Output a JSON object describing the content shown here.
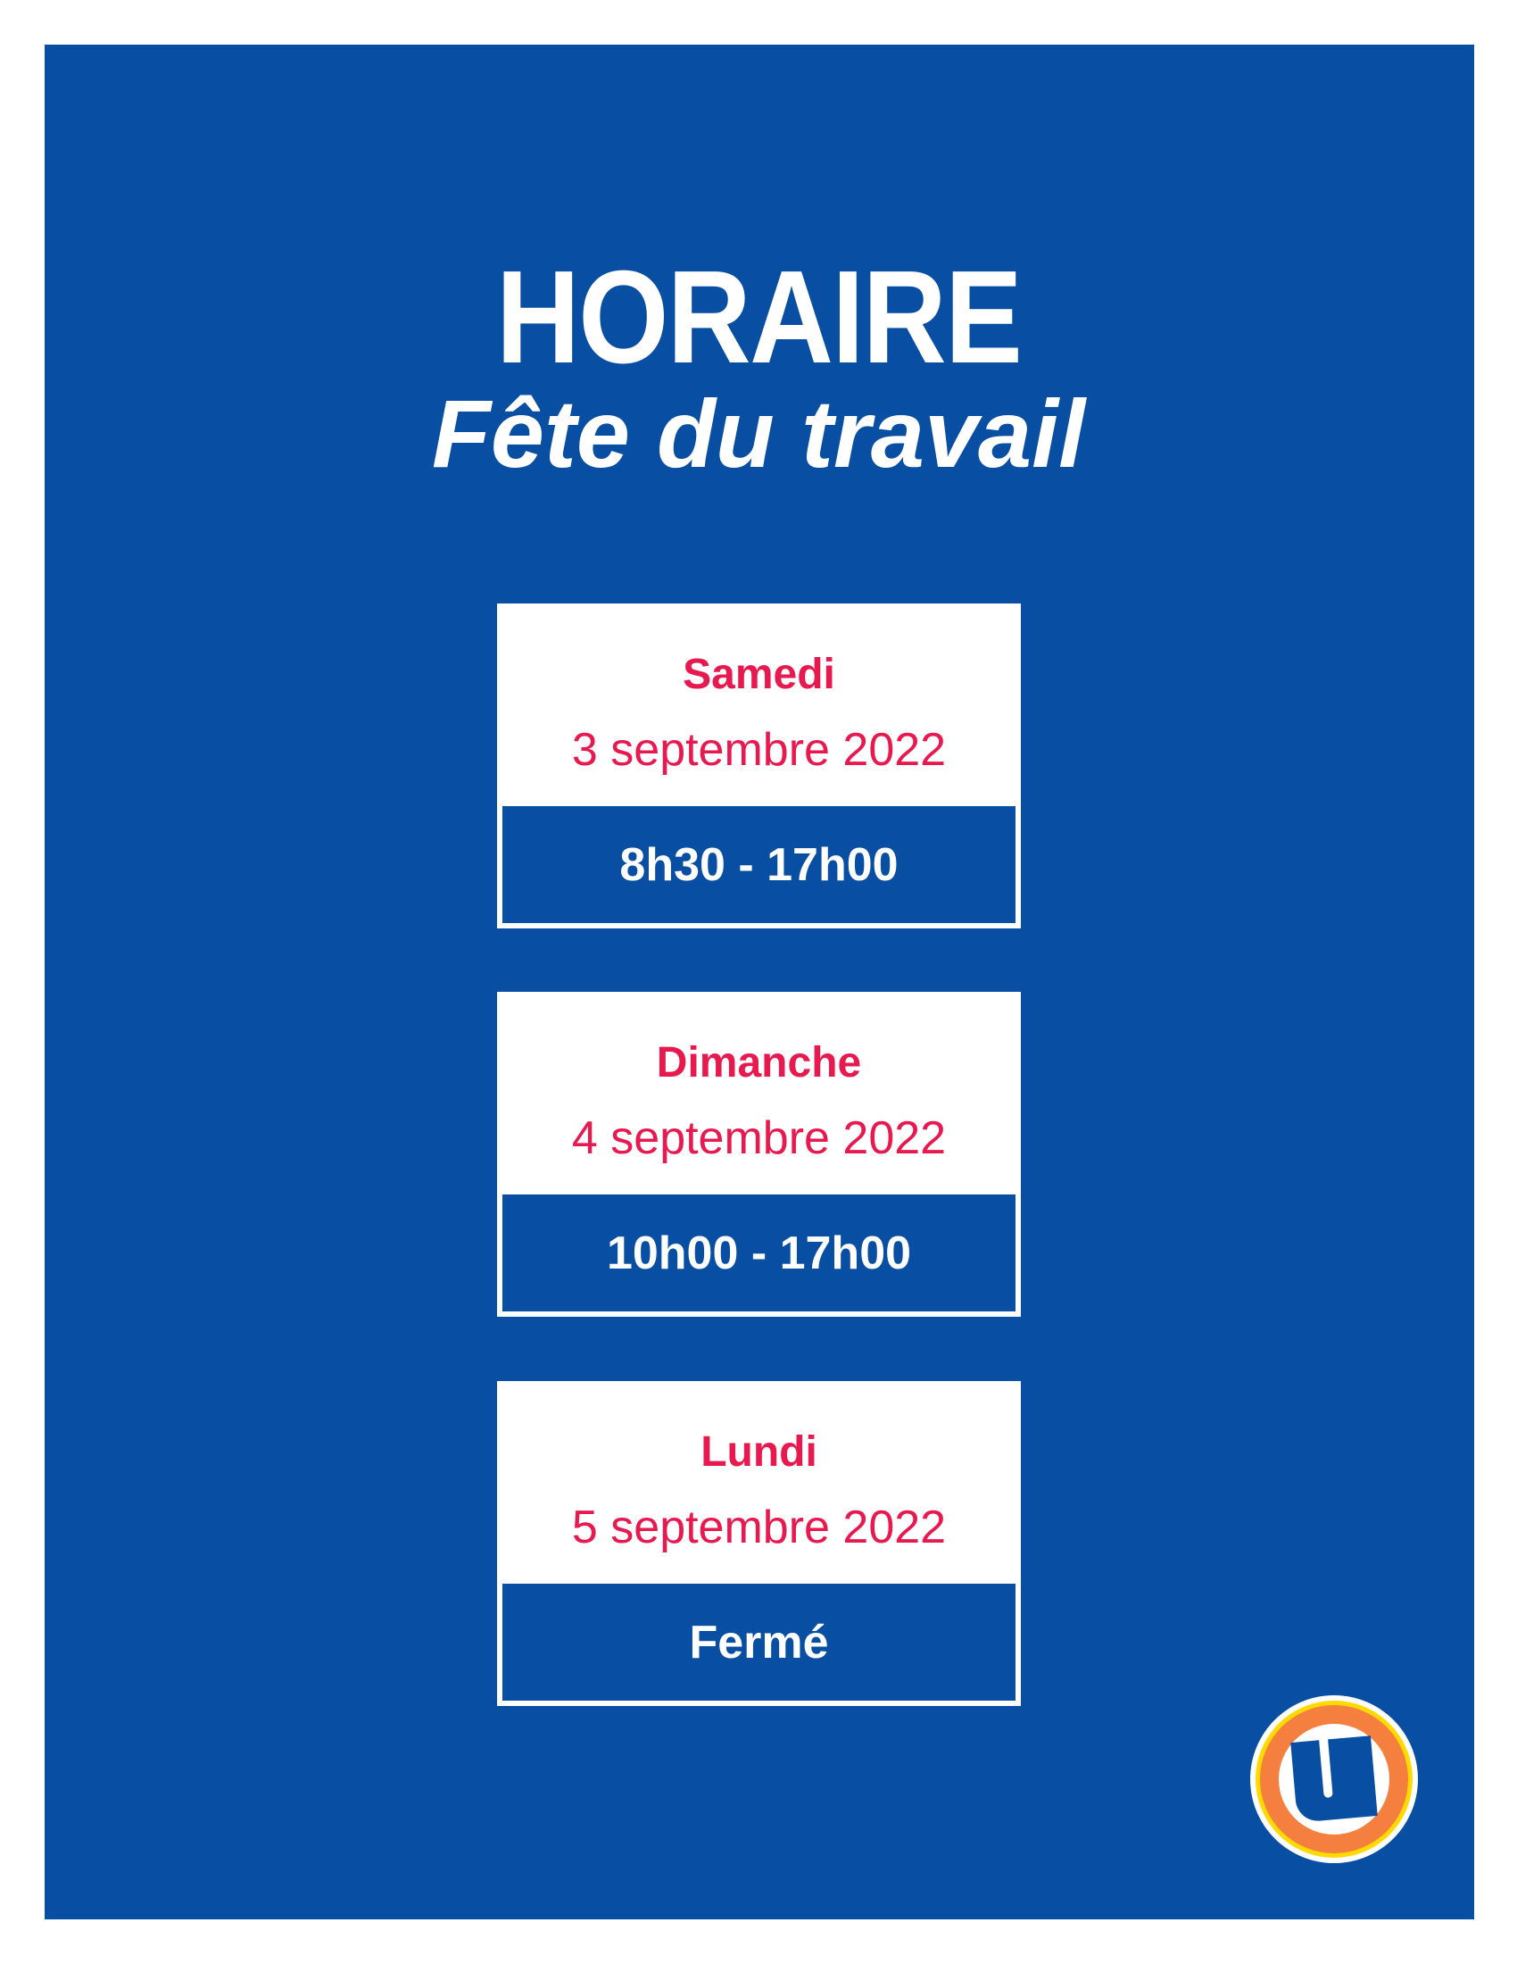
{
  "header": {
    "title": "HORAIRE",
    "subtitle": "Fête du travail"
  },
  "schedule": [
    {
      "day": "Samedi",
      "date": "3 septembre 2022",
      "hours": "8h30 - 17h00"
    },
    {
      "day": "Dimanche",
      "date": "4 septembre 2022",
      "hours": "10h00 - 17h00"
    },
    {
      "day": "Lundi",
      "date": "5 septembre 2022",
      "hours": "Fermé"
    }
  ],
  "colors": {
    "background": "#084ea2",
    "accent": "#e8194f",
    "logo_orange": "#f47f3e",
    "logo_yellow": "#ffd900"
  },
  "logo": {
    "icon": "u-logo-icon",
    "text": "U"
  }
}
